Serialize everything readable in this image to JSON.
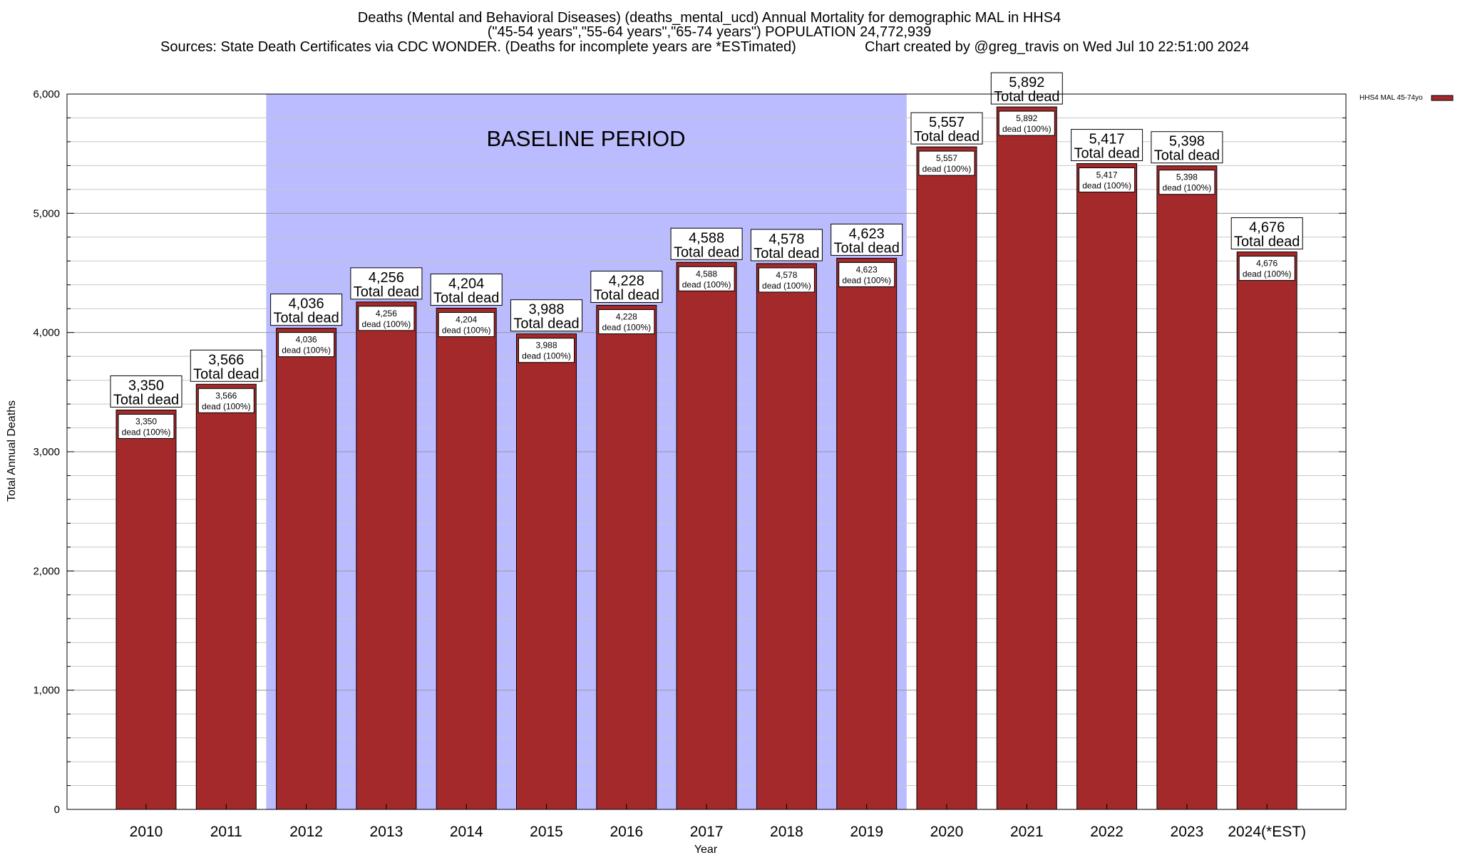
{
  "chart_data": {
    "type": "bar",
    "title_lines": [
      "Deaths (Mental and Behavioral Diseases) (deaths_mental_ucd) Annual Mortality for demographic MAL in HHS4",
      "(\"45-54 years\",\"55-64 years\",\"65-74 years\") POPULATION 24,772,939",
      "Sources: State Death Certificates via CDC WONDER. (Deaths for incomplete years are *ESTimated)",
      "Chart created by @greg_travis on Wed Jul 10 22:51:00 2024"
    ],
    "xlabel": "Year",
    "ylabel": "Total Annual Deaths",
    "ylim": [
      0,
      6000
    ],
    "yticks": [
      0,
      1000,
      2000,
      3000,
      4000,
      5000,
      6000
    ],
    "ytick_labels": [
      "0",
      "1,000",
      "2,000",
      "3,000",
      "4,000",
      "5,000",
      "6,000"
    ],
    "minor_tick_step": 200,
    "grid": true,
    "categories": [
      "2010",
      "2011",
      "2012",
      "2013",
      "2014",
      "2015",
      "2016",
      "2017",
      "2018",
      "2019",
      "2020",
      "2021",
      "2022",
      "2023",
      "2024(*EST)"
    ],
    "series": [
      {
        "name": "HHS4 MAL 45-74yo",
        "color": "#a3292b",
        "values": [
          3350,
          3566,
          4036,
          4256,
          4204,
          3988,
          4228,
          4588,
          4578,
          4623,
          5557,
          5892,
          5417,
          5398,
          4676
        ],
        "value_labels": [
          "3,350",
          "3,566",
          "4,036",
          "4,256",
          "4,204",
          "3,988",
          "4,228",
          "4,588",
          "4,578",
          "4,623",
          "5,557",
          "5,892",
          "5,417",
          "5,398",
          "4,676"
        ]
      }
    ],
    "total_label_suffix": "Total dead",
    "inner_label_suffix": "dead (100%)",
    "baseline": {
      "label": "BASELINE PERIOD",
      "start": "2012",
      "end": "2019",
      "color": "#bbbbff"
    },
    "legend": {
      "placement": "top-right-outside",
      "label": "HHS4 MAL 45-74yo"
    }
  }
}
